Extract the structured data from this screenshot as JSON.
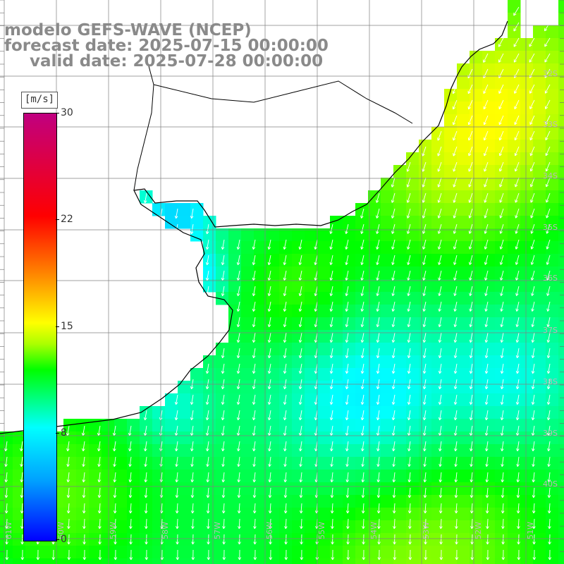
{
  "title": {
    "line1": "modelo GEFS-WAVE (NCEP)",
    "line2": "forecast date: 2025-07-15 00:00:00",
    "line3": "valid date: 2025-07-28 00:00:00"
  },
  "legend": {
    "unit": "[m/s]",
    "ticks": [
      "30",
      "22",
      "15",
      "8",
      "0"
    ]
  },
  "map": {
    "lon_labels": [
      "61W",
      "60W",
      "59W",
      "58W",
      "57W",
      "56W",
      "55W",
      "54W",
      "53W",
      "52W",
      "51W"
    ],
    "lat_labels": [
      "32S",
      "33S",
      "34S",
      "35S",
      "36S",
      "37S",
      "38S",
      "39S",
      "40S"
    ],
    "variable": "wind speed and direction",
    "colors": {
      "low": "#0000ff",
      "mid": "#00ffff",
      "high": "#00ff00",
      "land": "#ffffff",
      "grid": "#808080",
      "coast": "#000000"
    }
  }
}
